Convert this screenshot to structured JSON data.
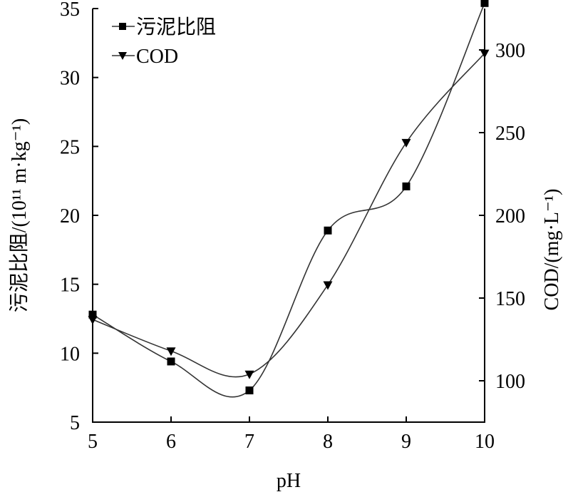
{
  "chart_data": {
    "type": "line",
    "title": "",
    "xlabel": "pH",
    "ylabel_left": "污泥比阻/(10¹¹ m·kg⁻¹)",
    "ylabel_right": "COD/(mg·L⁻¹)",
    "x": [
      5,
      6,
      7,
      8,
      9,
      10
    ],
    "xlim": [
      5,
      10
    ],
    "ylim_left": [
      5,
      35
    ],
    "ylim_right": [
      75,
      325
    ],
    "x_ticks": [
      "5",
      "6",
      "7",
      "8",
      "9",
      "10"
    ],
    "y_left_ticks": [
      "5",
      "10",
      "15",
      "20",
      "25",
      "30",
      "35"
    ],
    "y_right_ticks": [
      "100",
      "150",
      "200",
      "250",
      "300"
    ],
    "grid": false,
    "legend_position": "top-left",
    "series": [
      {
        "name": "污泥比阻",
        "axis": "left",
        "marker": "square",
        "values": [
          12.8,
          9.4,
          7.3,
          18.9,
          22.1,
          35.4
        ]
      },
      {
        "name": "COD",
        "axis": "right",
        "marker": "triangle-down",
        "values": [
          137,
          118,
          104,
          158,
          244,
          298
        ]
      }
    ]
  }
}
